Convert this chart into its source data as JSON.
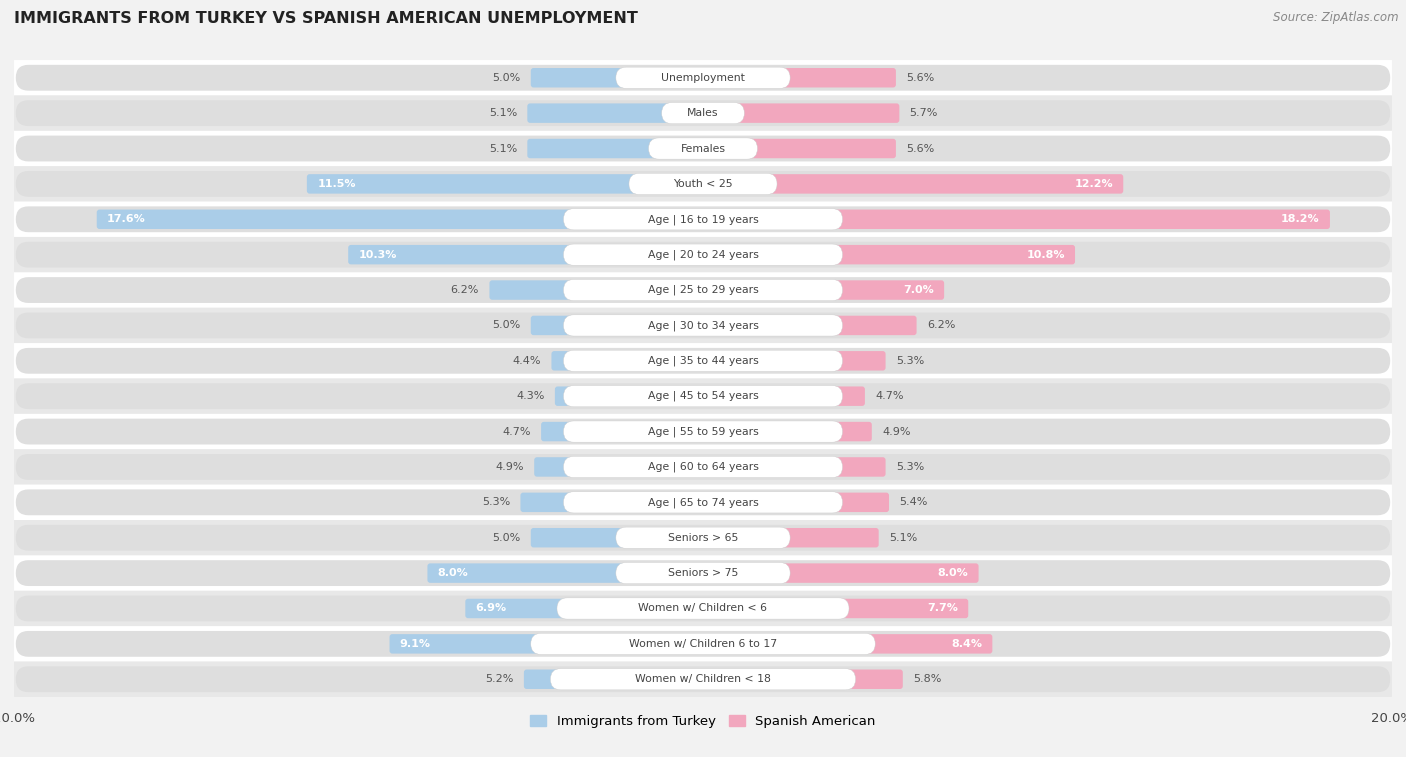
{
  "title": "IMMIGRANTS FROM TURKEY VS SPANISH AMERICAN UNEMPLOYMENT",
  "source": "Source: ZipAtlas.com",
  "categories": [
    "Unemployment",
    "Males",
    "Females",
    "Youth < 25",
    "Age | 16 to 19 years",
    "Age | 20 to 24 years",
    "Age | 25 to 29 years",
    "Age | 30 to 34 years",
    "Age | 35 to 44 years",
    "Age | 45 to 54 years",
    "Age | 55 to 59 years",
    "Age | 60 to 64 years",
    "Age | 65 to 74 years",
    "Seniors > 65",
    "Seniors > 75",
    "Women w/ Children < 6",
    "Women w/ Children 6 to 17",
    "Women w/ Children < 18"
  ],
  "turkey_values": [
    5.0,
    5.1,
    5.1,
    11.5,
    17.6,
    10.3,
    6.2,
    5.0,
    4.4,
    4.3,
    4.7,
    4.9,
    5.3,
    5.0,
    8.0,
    6.9,
    9.1,
    5.2
  ],
  "spanish_values": [
    5.6,
    5.7,
    5.6,
    12.2,
    18.2,
    10.8,
    7.0,
    6.2,
    5.3,
    4.7,
    4.9,
    5.3,
    5.4,
    5.1,
    8.0,
    7.7,
    8.4,
    5.8
  ],
  "turkey_color": "#aacde8",
  "spanish_color": "#f2a7be",
  "background_color": "#f2f2f2",
  "row_bg_odd": "#ffffff",
  "row_bg_even": "#e8e8e8",
  "pill_color_light": "#f5f5f5",
  "pill_color_dark": "#e0e0e0",
  "max_value": 20.0,
  "legend_turkey": "Immigrants from Turkey",
  "legend_spanish": "Spanish American",
  "label_threshold": 6.5
}
